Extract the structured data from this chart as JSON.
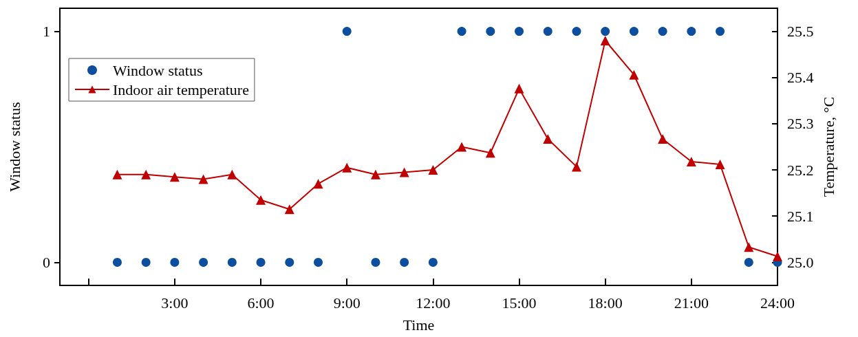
{
  "chart_data": {
    "type": "scatter",
    "xlabel": "Time",
    "ylabel": "Window status",
    "y2label": "Temperature, °C",
    "xlim": [
      -1,
      24
    ],
    "xticks": [
      {
        "value": 0,
        "label": null
      },
      {
        "value": 3,
        "label": "3:00"
      },
      {
        "value": 6,
        "label": "6:00"
      },
      {
        "value": 9,
        "label": "9:00"
      },
      {
        "value": 12,
        "label": "12:00"
      },
      {
        "value": 15,
        "label": "15:00"
      },
      {
        "value": 18,
        "label": "18:00"
      },
      {
        "value": 21,
        "label": "21:00"
      },
      {
        "value": 24,
        "label": "24:00"
      }
    ],
    "ylim": [
      -0.1,
      1.1
    ],
    "yticks": [
      0,
      1
    ],
    "y2lim": [
      24.95,
      25.55
    ],
    "y2ticks": [
      {
        "value": 25.0,
        "label": "25.0"
      },
      {
        "value": 25.1,
        "label": "25.1"
      },
      {
        "value": 25.2,
        "label": "25.2"
      },
      {
        "value": 25.3,
        "label": "25.3"
      },
      {
        "value": 25.4,
        "label": "25.4"
      },
      {
        "value": 25.5,
        "label": "25.5"
      }
    ],
    "legend": "top left",
    "grid": false,
    "series": [
      {
        "name": "Window status",
        "marker": "circle",
        "color": "#0d4f9e",
        "x": [
          1,
          2,
          3,
          4,
          5,
          6,
          7,
          8,
          9,
          10,
          11,
          12,
          13,
          14,
          15,
          16,
          17,
          18,
          19,
          20,
          21,
          22,
          23,
          24
        ],
        "values": [
          0,
          0,
          0,
          0,
          0,
          0,
          0,
          0,
          1,
          0,
          0,
          0,
          1,
          1,
          1,
          1,
          1,
          1,
          1,
          1,
          1,
          1,
          0,
          0
        ]
      },
      {
        "name": "Indoor air temperature",
        "type": "line",
        "marker": "triangle",
        "line_style": "solid",
        "axis": "y2",
        "color": "#c00000",
        "x": [
          1,
          2,
          3,
          4,
          5,
          6,
          7,
          8,
          9,
          10,
          11,
          12,
          13,
          14,
          15,
          16,
          17,
          18,
          19,
          20,
          21,
          22,
          23,
          24
        ],
        "values": [
          25.19,
          25.19,
          25.185,
          25.18,
          25.19,
          25.135,
          25.115,
          25.17,
          25.205,
          25.19,
          25.195,
          25.2,
          25.25,
          25.237,
          25.376,
          25.267,
          25.207,
          25.48,
          25.406,
          25.267,
          25.218,
          25.212,
          25.033,
          25.013
        ]
      }
    ]
  }
}
